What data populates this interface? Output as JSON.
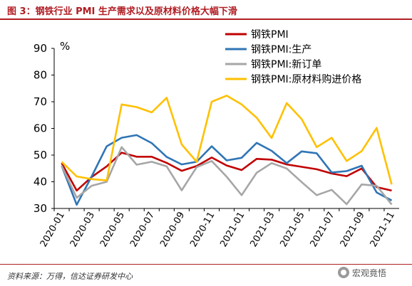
{
  "title": "图 3：钢铁行业 PMI 生产需求以及原材料价格大幅下滑",
  "source": "资料来源：万得，信达证券研发中心",
  "watermark": "宏观竟悟",
  "chart_data": {
    "type": "line",
    "unit_label": "%",
    "ylim": [
      30,
      90
    ],
    "yticks": [
      30,
      40,
      50,
      60,
      70,
      80,
      90
    ],
    "x": [
      "2020-01",
      "2020-02",
      "2020-03",
      "2020-04",
      "2020-05",
      "2020-06",
      "2020-07",
      "2020-08",
      "2020-09",
      "2020-10",
      "2020-11",
      "2020-12",
      "2021-01",
      "2021-02",
      "2021-03",
      "2021-04",
      "2021-05",
      "2021-06",
      "2021-07",
      "2021-08",
      "2021-09",
      "2021-10",
      "2021-11"
    ],
    "xtick_labels": [
      "2020-01",
      "2020-03",
      "2020-05",
      "2020-07",
      "2020-09",
      "2020-11",
      "2021-01",
      "2021-03",
      "2021-05",
      "2021-07",
      "2021-09",
      "2021-11"
    ],
    "grid": false,
    "legend_position": "top-right",
    "series": [
      {
        "name": "钢铁PMI",
        "color": "#c00000",
        "values": [
          47.0,
          36.7,
          41.8,
          45.8,
          50.9,
          49.4,
          49.4,
          47.1,
          44.1,
          45.9,
          49.1,
          46.1,
          44.4,
          48.6,
          48.3,
          46.5,
          45.6,
          44.7,
          43.1,
          42.1,
          45.0,
          38.0,
          36.7
        ]
      },
      {
        "name": "钢铁PMI:生产",
        "color": "#2f75b5",
        "values": [
          46.0,
          31.4,
          42.0,
          53.3,
          56.5,
          57.5,
          54.5,
          49.3,
          46.5,
          47.5,
          53.3,
          48.0,
          49.0,
          54.6,
          51.6,
          47.0,
          51.4,
          50.7,
          43.5,
          44.0,
          46.0,
          36.0,
          33.0
        ]
      },
      {
        "name": "钢铁PMI:新订单",
        "color": "#a6a6a6",
        "values": [
          46.0,
          34.0,
          38.5,
          40.0,
          53.0,
          46.4,
          47.5,
          45.8,
          36.8,
          45.5,
          47.8,
          41.9,
          35.0,
          43.4,
          47.0,
          45.0,
          39.9,
          35.0,
          37.0,
          31.6,
          39.0,
          38.5,
          31.5
        ]
      },
      {
        "name": "钢铁PMI:原材料购进价格",
        "color": "#ffc000",
        "values": [
          47.5,
          42.0,
          41.0,
          40.5,
          69.0,
          68.0,
          66.0,
          71.5,
          54.0,
          47.5,
          70.0,
          72.3,
          69.0,
          64.0,
          56.4,
          69.5,
          63.5,
          53.0,
          56.5,
          47.8,
          51.5,
          60.2,
          39.0
        ]
      }
    ]
  }
}
